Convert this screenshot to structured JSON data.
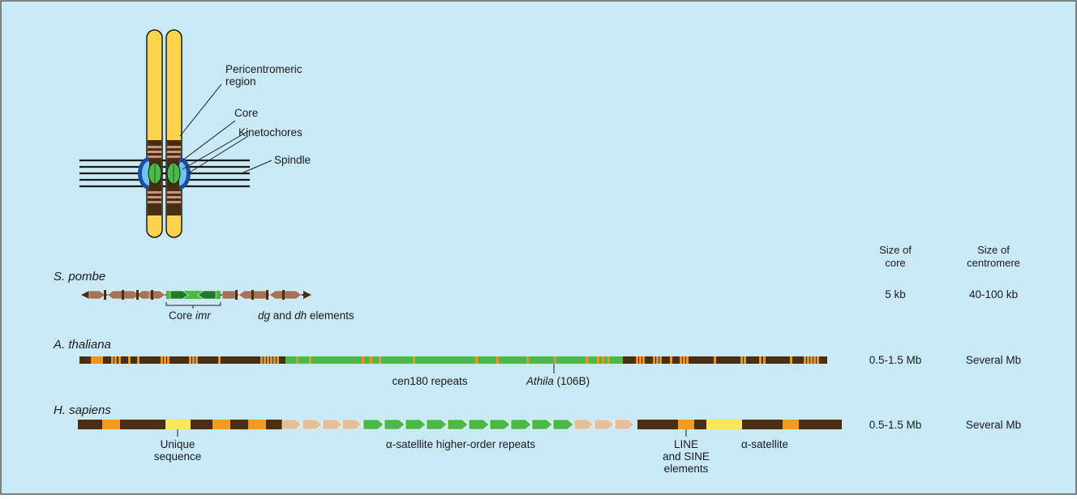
{
  "colors": {
    "panel_bg": "#c9e9f7",
    "panel_border": "#5a5a5a",
    "chromatid": "#fcd34d",
    "heterochromatin": "#4a2e12",
    "pericentromere_band": "#c79480",
    "kinetochore_outer": "#1d4e9e",
    "kinetochore_inner": "#6fc3ef",
    "core": "#4cb848",
    "core_dark": "#1f7a2a",
    "spindle": "#1a1a1a",
    "repeat_brown": "#a57359",
    "cen180": "#f0921e",
    "human_orange": "#f39a20",
    "human_yellow": "#fde65c",
    "alpha_light": "#e4c09a",
    "alpha_hor": "#4cb848"
  },
  "chromosome_labels": {
    "pericentromeric": [
      "Pericentromeric",
      "region"
    ],
    "core": "Core",
    "kinetochores": "Kinetochores",
    "spindle": "Spindle"
  },
  "columns": {
    "core_size": [
      "Size of",
      "core"
    ],
    "centromere_size": [
      "Size of",
      "centromere"
    ]
  },
  "organisms": [
    {
      "name": "S. pombe",
      "core_size": "5 kb",
      "centromere_size": "40-100 kb",
      "annotations": {
        "core_prefix": "Core",
        "core_italic": "imr",
        "dg": "dg",
        "and": "and",
        "dh": "dh",
        "elements": "elements"
      }
    },
    {
      "name": "A. thaliana",
      "core_size": "0.5-1.5 Mb",
      "centromere_size": "Several Mb",
      "annotations": {
        "cen180": "cen180 repeats",
        "athila_italic": "Athila",
        "athila_rest": "(106B)"
      }
    },
    {
      "name": "H. sapiens",
      "core_size": "0.5-1.5 Mb",
      "centromere_size": "Several Mb",
      "annotations": {
        "unique": [
          "Unique",
          "sequence"
        ],
        "hor": "α-satellite higher-order repeats",
        "line_sine": [
          "LINE",
          "and SINE",
          "elements"
        ],
        "alpha": "α-satellite"
      }
    }
  ]
}
